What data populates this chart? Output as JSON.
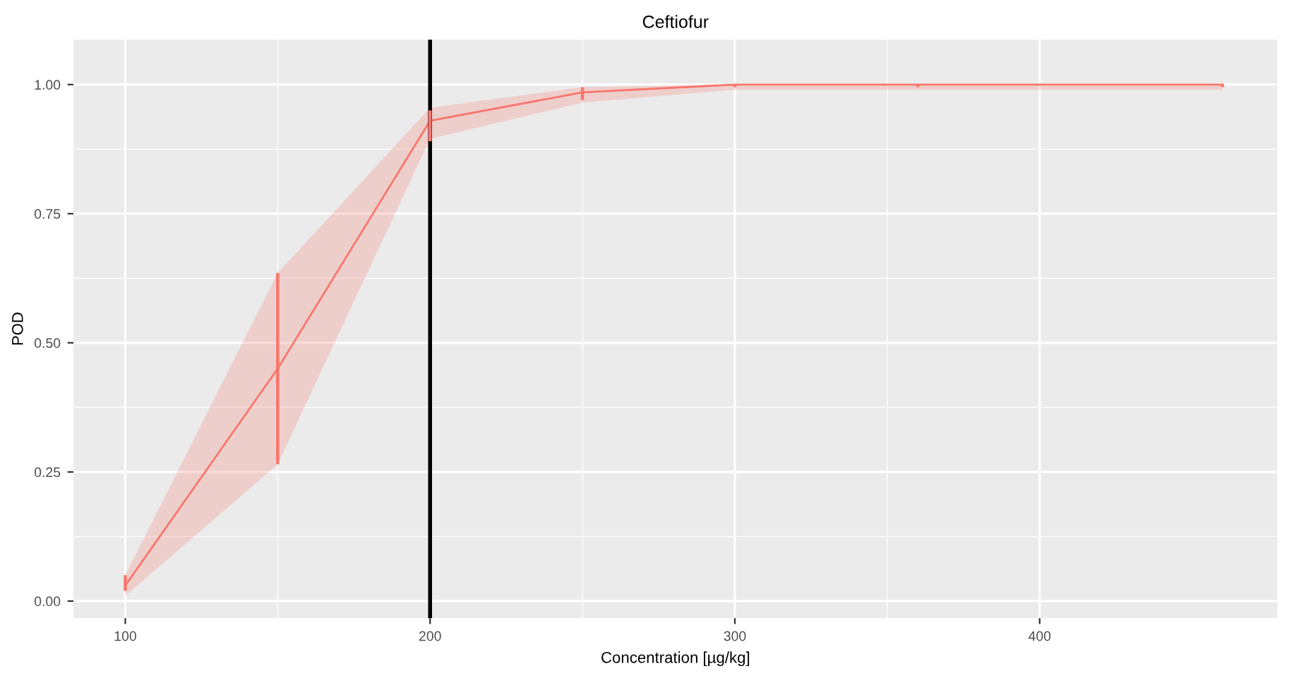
{
  "chart_data": {
    "type": "line",
    "title": "Ceftiofur",
    "xlabel": "Concentration [µg/kg]",
    "ylabel": "POD",
    "x": [
      100,
      150,
      200,
      250,
      300,
      360,
      460
    ],
    "series": [
      {
        "color": "#f8766d",
        "values": [
          0.03,
          0.45,
          0.93,
          0.985,
          1.0,
          1.0,
          1.0
        ],
        "errors": [
          [
            0.02,
            0.05
          ],
          [
            0.265,
            0.635
          ],
          [
            0.89,
            0.95
          ],
          [
            0.97,
            0.995
          ],
          [
            0.995,
            1.0
          ],
          [
            0.995,
            1.0
          ],
          [
            0.995,
            1.0
          ]
        ],
        "lower": [
          0.01,
          0.265,
          0.895,
          0.965,
          0.99,
          0.99,
          0.99
        ],
        "upper": [
          0.05,
          0.635,
          0.955,
          0.995,
          1.0,
          1.0,
          1.0
        ]
      }
    ],
    "xlim": [
      83,
      478
    ],
    "xticks": [
      100,
      200,
      300,
      400
    ],
    "ylim": [
      -0.033,
      1.087
    ],
    "yticks": [
      {
        "value": 0,
        "label": "0.00"
      },
      {
        "value": 0.25,
        "label": "0.25"
      },
      {
        "value": 0.5,
        "label": "0.50"
      },
      {
        "value": 0.75,
        "label": "0.75"
      },
      {
        "value": 1,
        "label": "1.00"
      }
    ],
    "ref_lines": [
      {
        "axis": "x",
        "value": 200,
        "color": "#000000"
      }
    ],
    "grid": true,
    "marker": "none",
    "line_style": "solid"
  }
}
